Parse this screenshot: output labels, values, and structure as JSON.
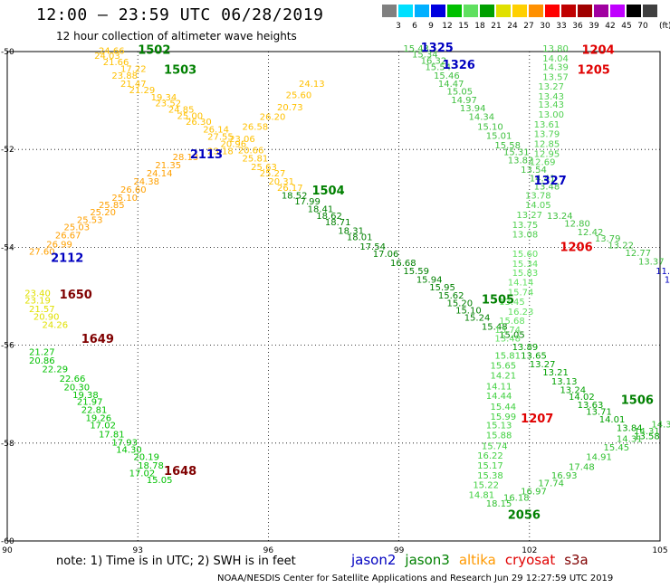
{
  "header": {
    "title": "12:00 — 23:59 UTC 06/28/2019",
    "subtitle": "12 hour collection of altimeter wave heights",
    "note": "note: 1) Time is in UTC; 2) SWH is in feet",
    "credit": "NOAA/NESDIS Center for Satellite Applications and Research   Jun 29 12:27:59 UTC 2019"
  },
  "color_scale": {
    "labels": [
      "3",
      "6",
      "9",
      "12",
      "15",
      "18",
      "21",
      "24",
      "27",
      "30",
      "33",
      "36",
      "39",
      "42",
      "45",
      "70"
    ],
    "unit": "(ft)",
    "colors": [
      "#808080",
      "#00e0ff",
      "#00b0ff",
      "#0000e0",
      "#00c000",
      "#60e060",
      "#00a000",
      "#e0e000",
      "#ffd000",
      "#ff9000",
      "#ff0000",
      "#c00000",
      "#a00000",
      "#a000a0",
      "#c000ff",
      "#000000",
      "#404040"
    ]
  },
  "satellites": [
    {
      "name": "jason2",
      "color": "#0000c0"
    },
    {
      "name": "jason3",
      "color": "#008000"
    },
    {
      "name": "altika",
      "color": "#ff9900"
    },
    {
      "name": "cryosat",
      "color": "#e00000"
    },
    {
      "name": "s3a",
      "color": "#800000"
    }
  ],
  "chart_data": {
    "type": "scatter",
    "title": "12:00 — 23:59 UTC 06/28/2019",
    "subtitle": "12 hour collection of altimeter wave heights",
    "xlim": [
      90,
      105
    ],
    "ylim": [
      -60,
      -50
    ],
    "xticks": [
      "90",
      "93",
      "96",
      "99",
      "102",
      "105"
    ],
    "yticks": [
      "-50",
      "-52",
      "-54",
      "-56",
      "-58",
      "-60"
    ],
    "grid": true,
    "series": [
      {
        "name": "1502",
        "color": "#ffc000",
        "points": [
          [
            92.1,
            -50.05,
            "24.66"
          ],
          [
            92.0,
            -50.15,
            "24.03"
          ],
          [
            92.2,
            -50.28,
            "21.66"
          ],
          [
            92.6,
            -50.42,
            "17.22"
          ],
          [
            92.4,
            -50.55,
            "23.88"
          ],
          [
            92.6,
            -50.72,
            "21.47"
          ],
          [
            92.8,
            -50.85,
            "21.29"
          ],
          [
            93.3,
            -51.0,
            "19.34"
          ],
          [
            93.4,
            -51.12,
            "23.52"
          ],
          [
            93.7,
            -51.25,
            "24.85"
          ],
          [
            93.9,
            -51.38,
            "25.00"
          ],
          [
            94.1,
            -51.5,
            "26.30"
          ],
          [
            94.5,
            -51.65,
            "26.14"
          ],
          [
            94.6,
            -51.8,
            "27.55"
          ],
          [
            94.9,
            -51.95,
            "20.96"
          ],
          [
            95.3,
            -52.08,
            "20.66"
          ],
          [
            95.4,
            -52.25,
            "25.81"
          ],
          [
            95.6,
            -52.42,
            "25.63"
          ],
          [
            95.8,
            -52.55,
            "25.27"
          ],
          [
            96.0,
            -52.72,
            "20.31"
          ],
          [
            96.2,
            -52.85,
            "26.17"
          ]
        ]
      },
      {
        "name": "1504",
        "color": "#008000",
        "points": [
          [
            96.3,
            -53.0,
            "18.52"
          ],
          [
            96.6,
            -53.12,
            "17.99"
          ],
          [
            96.9,
            -53.28,
            "18.41"
          ],
          [
            97.1,
            -53.42,
            "18.62"
          ],
          [
            97.3,
            -53.55,
            "18.71"
          ],
          [
            97.6,
            -53.72,
            "18.31"
          ],
          [
            97.8,
            -53.85,
            "18.01"
          ],
          [
            98.1,
            -54.05,
            "17.54"
          ],
          [
            98.4,
            -54.2,
            "17.06"
          ],
          [
            98.8,
            -54.38,
            "16.68"
          ],
          [
            99.1,
            -54.55,
            "15.59"
          ],
          [
            99.4,
            -54.72,
            "15.94"
          ],
          [
            99.7,
            -54.88,
            "15.95"
          ],
          [
            99.9,
            -55.05,
            "15.62"
          ],
          [
            100.1,
            -55.2,
            "15.20"
          ],
          [
            100.3,
            -55.35,
            "15.10"
          ],
          [
            100.5,
            -55.5,
            "15.24"
          ],
          [
            100.9,
            -55.68,
            "15.48"
          ],
          [
            101.3,
            -55.85,
            "15.05"
          ]
        ]
      },
      {
        "name": "1505",
        "color": "#40c040",
        "points": [
          [
            99.1,
            -50.0,
            "15.43"
          ],
          [
            99.3,
            -50.12,
            "15.34"
          ],
          [
            99.5,
            -50.25,
            "16.32"
          ],
          [
            99.6,
            -50.38,
            "15.54"
          ],
          [
            99.8,
            -50.55,
            "15.46"
          ],
          [
            99.9,
            -50.72,
            "14.47"
          ],
          [
            100.1,
            -50.88,
            "15.05"
          ],
          [
            100.2,
            -51.05,
            "14.97"
          ],
          [
            100.4,
            -51.22,
            "13.94"
          ],
          [
            100.6,
            -51.4,
            "14.34"
          ],
          [
            100.8,
            -51.6,
            "15.10"
          ],
          [
            101.0,
            -51.78,
            "15.01"
          ],
          [
            101.2,
            -51.98,
            "15.58"
          ],
          [
            101.4,
            -52.12,
            "15.31"
          ],
          [
            101.5,
            -52.28,
            "13.82"
          ],
          [
            101.8,
            -52.48,
            "13.54"
          ],
          [
            102.0,
            -52.65,
            "14.41"
          ],
          [
            102.1,
            -52.82,
            "13.48"
          ]
        ]
      },
      {
        "name": "1506",
        "color": "#00a000",
        "points": [
          [
            101.6,
            -56.1,
            "13.89"
          ],
          [
            101.8,
            -56.28,
            "13.65"
          ],
          [
            102.0,
            -56.45,
            "13.27"
          ],
          [
            102.3,
            -56.62,
            "13.21"
          ],
          [
            102.5,
            -56.8,
            "13.13"
          ],
          [
            102.7,
            -56.98,
            "13.24"
          ],
          [
            102.9,
            -57.12,
            "14.02"
          ],
          [
            103.1,
            -57.28,
            "13.63"
          ],
          [
            103.3,
            -57.42,
            "13.71"
          ],
          [
            103.6,
            -57.58,
            "14.01"
          ],
          [
            104.0,
            -57.75,
            "13.84"
          ],
          [
            104.4,
            -57.92,
            "13.58"
          ]
        ]
      },
      {
        "name": "1648",
        "color": "#00c000",
        "points": [
          [
            90.5,
            -56.2,
            "21.27"
          ],
          [
            90.5,
            -56.38,
            "20.86"
          ],
          [
            90.8,
            -56.55,
            "22.29"
          ],
          [
            91.2,
            -56.75,
            "22.66"
          ],
          [
            91.3,
            -56.92,
            "20.30"
          ],
          [
            91.5,
            -57.08,
            "19.38"
          ],
          [
            91.6,
            -57.22,
            "21.97"
          ],
          [
            91.7,
            -57.38,
            "22.81"
          ],
          [
            91.8,
            -57.55,
            "19.26"
          ],
          [
            91.9,
            -57.7,
            "17.02"
          ],
          [
            92.1,
            -57.88,
            "17.81"
          ],
          [
            92.4,
            -58.05,
            "17.93"
          ],
          [
            92.5,
            -58.2,
            "14.30"
          ],
          [
            92.9,
            -58.35,
            "20.19"
          ],
          [
            93.0,
            -58.52,
            "18.78"
          ],
          [
            92.8,
            -58.68,
            "17.02"
          ],
          [
            93.2,
            -58.82,
            "15.05"
          ]
        ]
      },
      {
        "name": "1650",
        "color": "#e0e000",
        "points": [
          [
            90.4,
            -55.0,
            "23.40"
          ],
          [
            90.4,
            -55.15,
            "23.19"
          ],
          [
            90.5,
            -55.32,
            "21.57"
          ],
          [
            90.6,
            -55.48,
            "20.90"
          ],
          [
            90.8,
            -55.65,
            "24.26"
          ]
        ]
      },
      {
        "name": "2112",
        "color": "#ffa000",
        "points": [
          [
            90.5,
            -54.15,
            "27.60"
          ],
          [
            90.9,
            -54.0,
            "26.99"
          ],
          [
            91.1,
            -53.82,
            "26.67"
          ],
          [
            91.3,
            -53.65,
            "25.03"
          ],
          [
            91.6,
            -53.5,
            "25.53"
          ],
          [
            91.9,
            -53.35,
            "25.20"
          ],
          [
            92.1,
            -53.2,
            "25.85"
          ],
          [
            92.4,
            -53.05,
            "25.10"
          ],
          [
            92.6,
            -52.88,
            "26.60"
          ],
          [
            92.9,
            -52.72,
            "24.38"
          ],
          [
            93.2,
            -52.55,
            "24.14"
          ],
          [
            93.4,
            -52.38,
            "21.35"
          ],
          [
            93.8,
            -52.22,
            "28.13"
          ]
        ]
      },
      {
        "name": "2113",
        "color": "#ffc000",
        "points": [
          [
            94.6,
            -52.1,
            "23.18"
          ],
          [
            95.1,
            -51.85,
            "23.06"
          ],
          [
            95.4,
            -51.6,
            "26.58"
          ],
          [
            95.8,
            -51.4,
            "26.20"
          ],
          [
            96.2,
            -51.2,
            "20.73"
          ],
          [
            96.4,
            -50.95,
            "25.60"
          ],
          [
            96.7,
            -50.72,
            "24.13"
          ]
        ]
      },
      {
        "name": "1207",
        "color": "#40d040",
        "points": [
          [
            101.2,
            -56.28,
            "15.81"
          ],
          [
            101.1,
            -56.48,
            "15.65"
          ],
          [
            101.1,
            -56.68,
            "14.21"
          ],
          [
            101.0,
            -56.9,
            "14.11"
          ],
          [
            101.0,
            -57.1,
            "14.44"
          ],
          [
            101.1,
            -57.32,
            "15.44"
          ],
          [
            101.1,
            -57.52,
            "15.99"
          ],
          [
            101.0,
            -57.7,
            "15.13"
          ],
          [
            101.0,
            -57.9,
            "15.88"
          ],
          [
            100.9,
            -58.12,
            "15.74"
          ],
          [
            100.8,
            -58.32,
            "16.22"
          ],
          [
            100.8,
            -58.52,
            "15.17"
          ],
          [
            100.8,
            -58.72,
            "15.38"
          ],
          [
            100.7,
            -58.92,
            "15.22"
          ],
          [
            100.6,
            -59.12,
            "14.81"
          ]
        ]
      },
      {
        "name": "1206",
        "color": "#60e060",
        "points": [
          [
            101.6,
            -54.2,
            "15.60"
          ],
          [
            101.6,
            -54.4,
            "15.34"
          ],
          [
            101.6,
            -54.58,
            "15.83"
          ],
          [
            101.5,
            -54.78,
            "14.14"
          ],
          [
            101.5,
            -54.98,
            "15.74"
          ],
          [
            101.3,
            -55.18,
            "13.45"
          ],
          [
            101.5,
            -55.38,
            "16.23"
          ],
          [
            101.3,
            -55.56,
            "15.68"
          ],
          [
            101.2,
            -55.75,
            "13.74"
          ],
          [
            101.2,
            -55.92,
            "13.48"
          ]
        ]
      },
      {
        "name": "1205",
        "color": "#50d050",
        "points": [
          [
            102.3,
            -50.0,
            "13.80"
          ],
          [
            102.3,
            -50.2,
            "14.04"
          ],
          [
            102.3,
            -50.38,
            "14.39"
          ],
          [
            102.3,
            -50.58,
            "13.57"
          ],
          [
            102.2,
            -50.78,
            "13.27"
          ],
          [
            102.2,
            -50.98,
            "13.43"
          ],
          [
            102.2,
            -51.15,
            "13.43"
          ],
          [
            102.2,
            -51.35,
            "13.00"
          ],
          [
            102.1,
            -51.55,
            "13.61"
          ],
          [
            102.1,
            -51.75,
            "13.79"
          ],
          [
            102.1,
            -51.95,
            "12.85"
          ],
          [
            102.1,
            -52.15,
            "12.95"
          ],
          [
            102.0,
            -52.32,
            "12.69"
          ],
          [
            101.9,
            -53.0,
            "13.78"
          ],
          [
            101.9,
            -53.2,
            "14.05"
          ],
          [
            101.7,
            -53.4,
            "13.27"
          ],
          [
            101.6,
            -53.6,
            "13.75"
          ],
          [
            101.6,
            -53.8,
            "13.08"
          ]
        ]
      },
      {
        "name": "1204",
        "color": "#40c040",
        "points": [
          [
            102.4,
            -53.42,
            "13.24"
          ],
          [
            102.8,
            -53.58,
            "12.80"
          ],
          [
            103.1,
            -53.75,
            "12.42"
          ],
          [
            103.5,
            -53.88,
            "13.79"
          ],
          [
            103.8,
            -54.02,
            "13.22"
          ],
          [
            104.2,
            -54.18,
            "12.77"
          ],
          [
            104.5,
            -54.35,
            "13.37"
          ]
        ]
      },
      {
        "name": "1326",
        "color": "#0000c0",
        "points": [
          [
            104.9,
            -54.55,
            "11.91"
          ],
          [
            105.1,
            -54.72,
            "11.56"
          ],
          [
            105.3,
            -54.88,
            "11.68"
          ]
        ]
      },
      {
        "name": "2056",
        "color": "#30c030",
        "points": [
          [
            101.0,
            -59.3,
            "18.15"
          ],
          [
            101.4,
            -59.18,
            "16.18"
          ],
          [
            101.8,
            -59.05,
            "16.97"
          ],
          [
            102.2,
            -58.88,
            "17.74"
          ],
          [
            102.5,
            -58.72,
            "16.93"
          ],
          [
            102.9,
            -58.55,
            "17.48"
          ],
          [
            103.3,
            -58.35,
            "14.91"
          ],
          [
            103.7,
            -58.15,
            "15.45"
          ],
          [
            104.0,
            -57.98,
            "14.31"
          ],
          [
            104.4,
            -57.82,
            "14.31"
          ],
          [
            104.8,
            -57.68,
            "14.33"
          ]
        ]
      }
    ],
    "track_labels": [
      {
        "text": "1502",
        "x": 93.0,
        "y": -50.05,
        "color": "#008000"
      },
      {
        "text": "1503",
        "x": 93.6,
        "y": -50.45,
        "color": "#008000"
      },
      {
        "text": "1325",
        "x": 99.5,
        "y": -50.0,
        "color": "#0000c0"
      },
      {
        "text": "1326",
        "x": 100.0,
        "y": -50.35,
        "color": "#0000c0"
      },
      {
        "text": "1204",
        "x": 103.2,
        "y": -50.05,
        "color": "#e00000"
      },
      {
        "text": "1205",
        "x": 103.1,
        "y": -50.45,
        "color": "#e00000"
      },
      {
        "text": "2113",
        "x": 94.2,
        "y": -52.18,
        "color": "#0000c0"
      },
      {
        "text": "1504",
        "x": 97.0,
        "y": -52.92,
        "color": "#008000"
      },
      {
        "text": "1327",
        "x": 102.1,
        "y": -52.72,
        "color": "#0000c0"
      },
      {
        "text": "1206",
        "x": 102.7,
        "y": -54.08,
        "color": "#e00000"
      },
      {
        "text": "2112",
        "x": 91.0,
        "y": -54.3,
        "color": "#0000c0"
      },
      {
        "text": "1650",
        "x": 91.2,
        "y": -55.05,
        "color": "#800000"
      },
      {
        "text": "1505",
        "x": 100.9,
        "y": -55.15,
        "color": "#008000"
      },
      {
        "text": "1649",
        "x": 91.7,
        "y": -55.95,
        "color": "#800000"
      },
      {
        "text": "1506",
        "x": 104.1,
        "y": -57.2,
        "color": "#008000"
      },
      {
        "text": "1207",
        "x": 101.8,
        "y": -57.58,
        "color": "#e00000"
      },
      {
        "text": "1648",
        "x": 93.6,
        "y": -58.65,
        "color": "#800000"
      },
      {
        "text": "2056",
        "x": 101.5,
        "y": -59.55,
        "color": "#008000"
      }
    ]
  }
}
